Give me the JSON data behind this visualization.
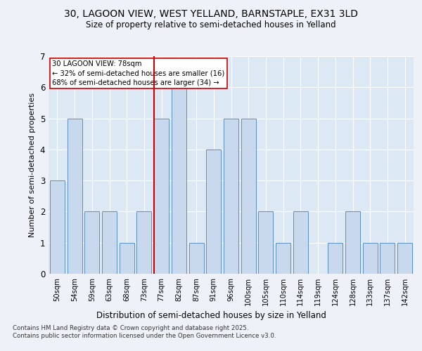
{
  "title_line1": "30, LAGOON VIEW, WEST YELLAND, BARNSTAPLE, EX31 3LD",
  "title_line2": "Size of property relative to semi-detached houses in Yelland",
  "xlabel": "Distribution of semi-detached houses by size in Yelland",
  "ylabel": "Number of semi-detached properties",
  "bins": [
    "50sqm",
    "54sqm",
    "59sqm",
    "63sqm",
    "68sqm",
    "73sqm",
    "77sqm",
    "82sqm",
    "87sqm",
    "91sqm",
    "96sqm",
    "100sqm",
    "105sqm",
    "110sqm",
    "114sqm",
    "119sqm",
    "124sqm",
    "128sqm",
    "133sqm",
    "137sqm",
    "142sqm"
  ],
  "values": [
    3,
    5,
    2,
    2,
    1,
    2,
    5,
    6,
    1,
    4,
    5,
    5,
    2,
    1,
    2,
    0,
    1,
    2,
    1,
    1,
    1
  ],
  "bar_color": "#c9d9ed",
  "bar_edge_color": "#5b8fc9",
  "property_bin_index": 6,
  "annotation_title": "30 LAGOON VIEW: 78sqm",
  "annotation_line2": "← 32% of semi-detached houses are smaller (16)",
  "annotation_line3": "68% of semi-detached houses are larger (34) →",
  "red_line_color": "#cc0000",
  "annotation_box_color": "#ffffff",
  "annotation_box_edge": "#cc0000",
  "footer_line1": "Contains HM Land Registry data © Crown copyright and database right 2025.",
  "footer_line2": "Contains public sector information licensed under the Open Government Licence v3.0.",
  "ylim": [
    0,
    7
  ],
  "yticks": [
    0,
    1,
    2,
    3,
    4,
    5,
    6,
    7
  ],
  "bg_color": "#eef2f8",
  "plot_bg_color": "#dde8f5"
}
